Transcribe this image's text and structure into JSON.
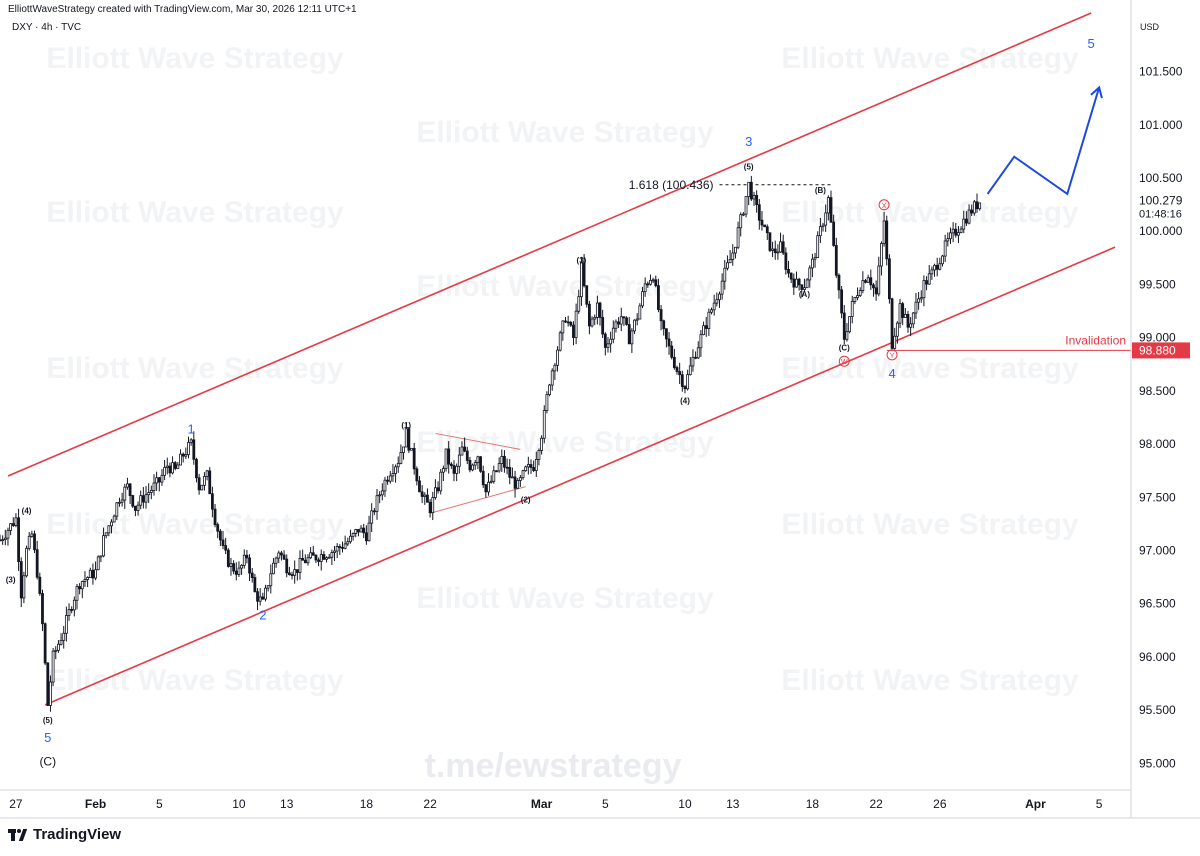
{
  "header": {
    "credit": "ElliottWaveStrategy created with TradingView.com, Mar 30, 2026 12:11 UTC+1",
    "symbol": "DXY · 4h · TVC",
    "currency": "USD"
  },
  "footer": {
    "brand": "TradingView",
    "logo_icon": "tradingview-logo-icon"
  },
  "watermark": {
    "text": "Elliott Wave Strategy",
    "telegram": "t.me/ewstrategy"
  },
  "colors": {
    "up": "#131722",
    "down": "#131722",
    "channel": "#e53945",
    "wave_label": "#2962ff",
    "projection": "#1e48e0",
    "invalidation": "#e53945"
  },
  "chart_data": {
    "type": "candlestick",
    "x_axis": {
      "type": "time",
      "tick_labels": [
        "27",
        "Feb",
        "5",
        "10",
        "13",
        "18",
        "22",
        "Mar",
        "5",
        "10",
        "13",
        "18",
        "22",
        "26",
        "Apr",
        "5"
      ],
      "tick_dates": [
        "2026-01-27",
        "2026-02-01",
        "2026-02-05",
        "2026-02-10",
        "2026-02-13",
        "2026-02-18",
        "2026-02-22",
        "2026-03-01",
        "2026-03-05",
        "2026-03-10",
        "2026-03-13",
        "2026-03-18",
        "2026-03-22",
        "2026-03-26",
        "2026-04-01",
        "2026-04-05"
      ],
      "range": [
        "2026-01-26",
        "2026-04-07"
      ]
    },
    "y_axis": {
      "position": "right",
      "range": [
        94.75,
        102.05
      ],
      "tick_labels": [
        "101.500",
        "101.000",
        "100.500",
        "100.000",
        "99.500",
        "99.000",
        "98.500",
        "98.000",
        "97.500",
        "97.000",
        "96.500",
        "96.000",
        "95.500",
        "95.000"
      ],
      "ticks": [
        101.5,
        101.0,
        100.5,
        100.0,
        99.5,
        99.0,
        98.5,
        98.0,
        97.5,
        97.0,
        96.5,
        96.0,
        95.5,
        95.0
      ]
    },
    "price_path": [
      [
        "2026-01-26T00:00",
        97.1
      ],
      [
        "2026-01-26T12:00",
        97.2
      ],
      [
        "2026-01-27T00:00",
        97.3
      ],
      [
        "2026-01-27T08:00",
        96.6
      ],
      [
        "2026-01-27T16:00",
        97.0
      ],
      [
        "2026-01-28T00:00",
        97.15
      ],
      [
        "2026-01-28T08:00",
        96.8
      ],
      [
        "2026-01-28T16:00",
        96.3
      ],
      [
        "2026-01-29T00:00",
        95.55
      ],
      [
        "2026-01-29T08:00",
        96.0
      ],
      [
        "2026-01-30T00:00",
        96.25
      ],
      [
        "2026-01-30T12:00",
        96.5
      ],
      [
        "2026-01-31T00:00",
        96.7
      ],
      [
        "2026-02-01T00:00",
        96.8
      ],
      [
        "2026-02-01T12:00",
        97.1
      ],
      [
        "2026-02-02T00:00",
        97.3
      ],
      [
        "2026-02-02T12:00",
        97.5
      ],
      [
        "2026-02-03T00:00",
        97.6
      ],
      [
        "2026-02-03T12:00",
        97.4
      ],
      [
        "2026-02-04T00:00",
        97.5
      ],
      [
        "2026-02-05T00:00",
        97.65
      ],
      [
        "2026-02-05T12:00",
        97.8
      ],
      [
        "2026-02-06T00:00",
        97.75
      ],
      [
        "2026-02-06T12:00",
        97.9
      ],
      [
        "2026-02-07T00:00",
        98.0
      ],
      [
        "2026-02-07T12:00",
        97.6
      ],
      [
        "2026-02-08T00:00",
        97.7
      ],
      [
        "2026-02-08T12:00",
        97.3
      ],
      [
        "2026-02-09T00:00",
        97.0
      ],
      [
        "2026-02-09T12:00",
        96.85
      ],
      [
        "2026-02-10T00:00",
        96.8
      ],
      [
        "2026-02-10T12:00",
        96.95
      ],
      [
        "2026-02-11T00:00",
        96.6
      ],
      [
        "2026-02-11T12:00",
        96.5
      ],
      [
        "2026-02-12T00:00",
        96.8
      ],
      [
        "2026-02-12T12:00",
        97.0
      ],
      [
        "2026-02-13T00:00",
        96.85
      ],
      [
        "2026-02-13T12:00",
        96.8
      ],
      [
        "2026-02-14T00:00",
        96.9
      ],
      [
        "2026-02-15T00:00",
        96.95
      ],
      [
        "2026-02-16T00:00",
        97.0
      ],
      [
        "2026-02-16T12:00",
        97.05
      ],
      [
        "2026-02-17T00:00",
        97.1
      ],
      [
        "2026-02-17T12:00",
        97.2
      ],
      [
        "2026-02-18T00:00",
        97.15
      ],
      [
        "2026-02-18T12:00",
        97.4
      ],
      [
        "2026-02-19T00:00",
        97.6
      ],
      [
        "2026-02-19T12:00",
        97.75
      ],
      [
        "2026-02-20T00:00",
        97.85
      ],
      [
        "2026-02-20T12:00",
        98.1
      ],
      [
        "2026-02-21T00:00",
        97.8
      ],
      [
        "2026-02-21T12:00",
        97.5
      ],
      [
        "2026-02-22T00:00",
        97.4
      ],
      [
        "2026-02-22T12:00",
        97.6
      ],
      [
        "2026-02-23T00:00",
        97.9
      ],
      [
        "2026-02-23T12:00",
        97.7
      ],
      [
        "2026-02-24T00:00",
        97.95
      ],
      [
        "2026-02-24T12:00",
        97.8
      ],
      [
        "2026-02-25T00:00",
        97.9
      ],
      [
        "2026-02-25T12:00",
        97.55
      ],
      [
        "2026-02-26T00:00",
        97.7
      ],
      [
        "2026-02-26T12:00",
        97.85
      ],
      [
        "2026-02-27T00:00",
        97.7
      ],
      [
        "2026-02-27T12:00",
        97.6
      ],
      [
        "2026-02-28T00:00",
        97.75
      ],
      [
        "2026-02-28T12:00",
        97.8
      ],
      [
        "2026-03-01T00:00",
        98.1
      ],
      [
        "2026-03-01T12:00",
        98.6
      ],
      [
        "2026-03-02T00:00",
        98.9
      ],
      [
        "2026-03-02T12:00",
        99.2
      ],
      [
        "2026-03-03T00:00",
        99.0
      ],
      [
        "2026-03-03T12:00",
        99.65
      ],
      [
        "2026-03-04T00:00",
        99.1
      ],
      [
        "2026-03-04T12:00",
        99.3
      ],
      [
        "2026-03-05T00:00",
        98.9
      ],
      [
        "2026-03-05T12:00",
        99.1
      ],
      [
        "2026-03-06T00:00",
        99.2
      ],
      [
        "2026-03-06T12:00",
        99.0
      ],
      [
        "2026-03-07T00:00",
        99.2
      ],
      [
        "2026-03-07T12:00",
        99.5
      ],
      [
        "2026-03-08T00:00",
        99.6
      ],
      [
        "2026-03-08T12:00",
        99.1
      ],
      [
        "2026-03-09T00:00",
        98.9
      ],
      [
        "2026-03-09T12:00",
        98.7
      ],
      [
        "2026-03-10T00:00",
        98.55
      ],
      [
        "2026-03-10T12:00",
        98.8
      ],
      [
        "2026-03-11T00:00",
        99.0
      ],
      [
        "2026-03-11T12:00",
        99.2
      ],
      [
        "2026-03-12T00:00",
        99.4
      ],
      [
        "2026-03-12T12:00",
        99.6
      ],
      [
        "2026-03-13T00:00",
        99.8
      ],
      [
        "2026-03-13T12:00",
        100.1
      ],
      [
        "2026-03-14T00:00",
        100.436
      ],
      [
        "2026-03-14T12:00",
        100.2
      ],
      [
        "2026-03-15T00:00",
        100.0
      ],
      [
        "2026-03-15T12:00",
        99.8
      ],
      [
        "2026-03-16T00:00",
        99.85
      ],
      [
        "2026-03-16T12:00",
        99.6
      ],
      [
        "2026-03-17T00:00",
        99.5
      ],
      [
        "2026-03-17T12:00",
        99.5
      ],
      [
        "2026-03-18T00:00",
        99.7
      ],
      [
        "2026-03-18T12:00",
        100.0
      ],
      [
        "2026-03-19T00:00",
        100.3
      ],
      [
        "2026-03-19T12:00",
        99.6
      ],
      [
        "2026-03-20T00:00",
        99.0
      ],
      [
        "2026-03-20T12:00",
        99.3
      ],
      [
        "2026-03-21T00:00",
        99.5
      ],
      [
        "2026-03-21T12:00",
        99.6
      ],
      [
        "2026-03-22T00:00",
        99.4
      ],
      [
        "2026-03-22T12:00",
        100.1
      ],
      [
        "2026-03-23T00:00",
        98.95
      ],
      [
        "2026-03-23T12:00",
        99.3
      ],
      [
        "2026-03-24T00:00",
        99.1
      ],
      [
        "2026-03-24T12:00",
        99.3
      ],
      [
        "2026-03-25T00:00",
        99.5
      ],
      [
        "2026-03-25T12:00",
        99.6
      ],
      [
        "2026-03-26T00:00",
        99.75
      ],
      [
        "2026-03-26T12:00",
        99.9
      ],
      [
        "2026-03-27T00:00",
        100.0
      ],
      [
        "2026-03-27T12:00",
        100.1
      ],
      [
        "2026-03-28T00:00",
        100.2
      ],
      [
        "2026-03-28T12:00",
        100.279
      ]
    ],
    "channel": {
      "upper": [
        [
          "2026-01-26T12:00",
          97.7
        ],
        [
          "2026-04-04T12:00",
          102.05
        ]
      ],
      "lower": [
        [
          "2026-01-28T20:00",
          95.55
        ],
        [
          "2026-04-06T00:00",
          99.85
        ]
      ],
      "color": "#e53945"
    },
    "triangle": {
      "upper": [
        [
          "2026-02-22T08:00",
          98.1
        ],
        [
          "2026-02-27T16:00",
          97.95
        ]
      ],
      "lower": [
        [
          "2026-02-22T00:00",
          97.35
        ],
        [
          "2026-02-28T00:00",
          97.6
        ]
      ]
    },
    "fib_line": {
      "label": "1.618 (100.436)",
      "value": 100.436,
      "start": "2026-03-12T04:00",
      "end": "2026-03-19T04:00"
    },
    "invalidation": {
      "label": "Invalidation",
      "value": 98.88,
      "value_label": "98.880",
      "start": "2026-03-22T16:00"
    },
    "last_price": {
      "value": 100.279,
      "value_label": "100.279",
      "countdown": "01:48:16"
    },
    "projection": [
      [
        "2026-03-29T00:00",
        100.35
      ],
      [
        "2026-03-30T16:00",
        100.7
      ],
      [
        "2026-04-03T00:00",
        100.35
      ],
      [
        "2026-04-05T00:00",
        101.35
      ]
    ],
    "wave_labels": [
      {
        "text": "(3)",
        "at": [
          "2026-01-26T16:00",
          96.7
        ],
        "style": "minor"
      },
      {
        "text": "(4)",
        "at": [
          "2026-01-27T16:00",
          97.35
        ],
        "style": "minor"
      },
      {
        "text": "(5)",
        "at": [
          "2026-01-29T00:00",
          95.38
        ],
        "style": "minor"
      },
      {
        "text": "5",
        "at": [
          "2026-01-29T00:00",
          95.2
        ],
        "style": "major"
      },
      {
        "text": "(C)",
        "at": [
          "2026-01-29T00:00",
          94.98
        ],
        "style": "corrective"
      },
      {
        "text": "1",
        "at": [
          "2026-02-07T00:00",
          98.1
        ],
        "style": "major"
      },
      {
        "text": "2",
        "at": [
          "2026-02-11T12:00",
          96.35
        ],
        "style": "major"
      },
      {
        "text": "(1)",
        "at": [
          "2026-02-20T12:00",
          98.15
        ],
        "style": "minor"
      },
      {
        "text": "(2)",
        "at": [
          "2026-02-28T00:00",
          97.45
        ],
        "style": "minor"
      },
      {
        "text": "(3)",
        "at": [
          "2026-03-03T12:00",
          99.7
        ],
        "style": "minor"
      },
      {
        "text": "(4)",
        "at": [
          "2026-03-10T00:00",
          98.38
        ],
        "style": "minor"
      },
      {
        "text": "(5)",
        "at": [
          "2026-03-14T00:00",
          100.58
        ],
        "style": "minor"
      },
      {
        "text": "3",
        "at": [
          "2026-03-14T00:00",
          100.8
        ],
        "style": "major"
      },
      {
        "text": "(A)",
        "at": [
          "2026-03-17T12:00",
          99.38
        ],
        "style": "minor"
      },
      {
        "text": "(B)",
        "at": [
          "2026-03-18T12:00",
          100.36
        ],
        "style": "minor"
      },
      {
        "text": "(C)",
        "at": [
          "2026-03-20T00:00",
          98.88
        ],
        "style": "minor"
      },
      {
        "text": "W",
        "at": [
          "2026-03-20T00:00",
          98.75
        ],
        "style": "circle"
      },
      {
        "text": "X",
        "at": [
          "2026-03-22T12:00",
          100.22
        ],
        "style": "circle"
      },
      {
        "text": "Y",
        "at": [
          "2026-03-23T00:00",
          98.81
        ],
        "style": "circle"
      },
      {
        "text": "4",
        "at": [
          "2026-03-23T00:00",
          98.62
        ],
        "style": "major"
      },
      {
        "text": "5",
        "at": [
          "2026-04-04T12:00",
          101.72
        ],
        "style": "major"
      }
    ]
  }
}
